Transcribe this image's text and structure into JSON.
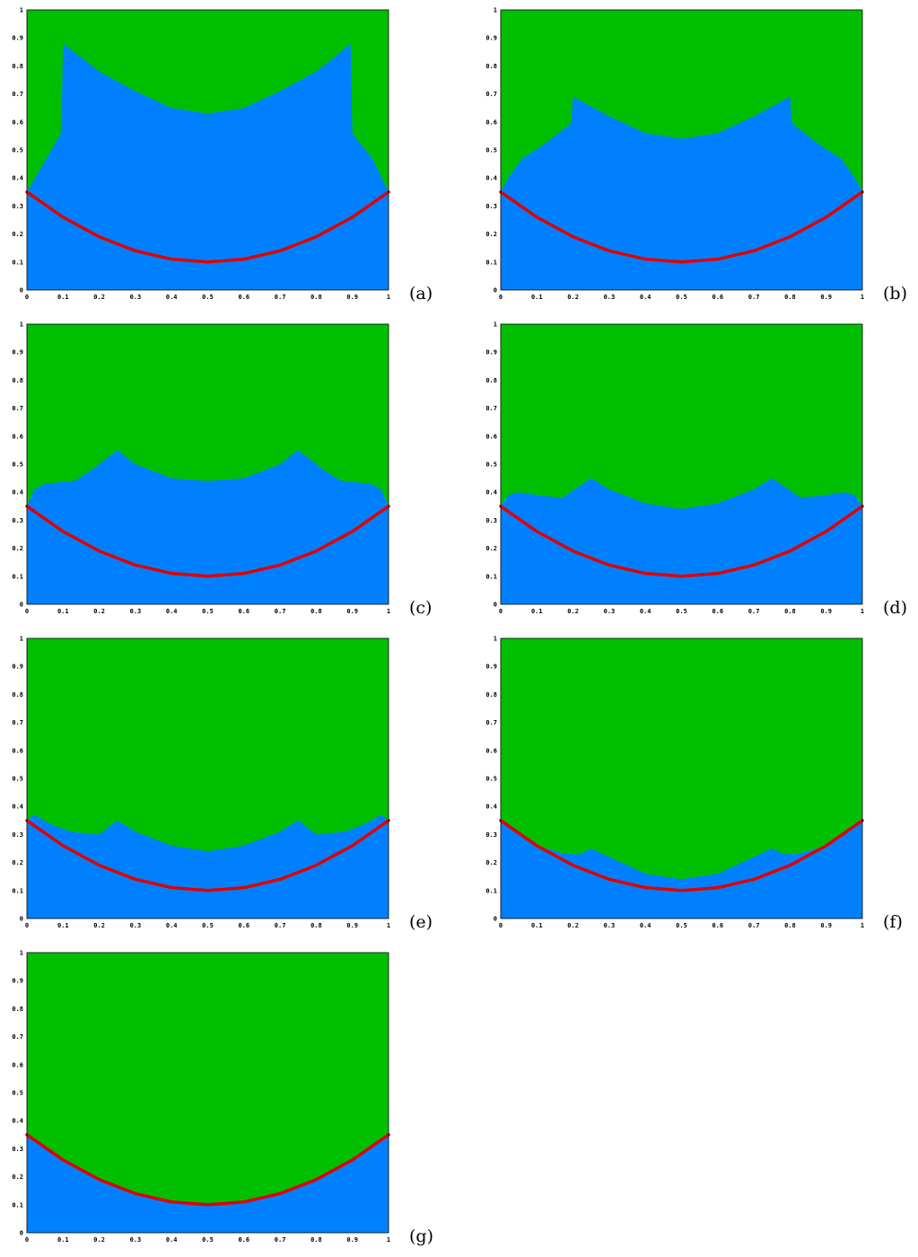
{
  "colors": {
    "upper_region": "#00bf00",
    "lower_region": "#0080ff",
    "reference_curve": "#e00000"
  },
  "axis_ticks": {
    "x": [
      "0",
      "0.1",
      "0.2",
      "0.3",
      "0.4",
      "0.5",
      "0.6",
      "0.7",
      "0.8",
      "0.9",
      "1"
    ],
    "y": [
      "0",
      "0.1",
      "0.2",
      "0.3",
      "0.4",
      "0.5",
      "0.6",
      "0.7",
      "0.8",
      "0.9",
      "1"
    ]
  },
  "reference_curve": {
    "x": [
      0,
      0.1,
      0.2,
      0.3,
      0.4,
      0.5,
      0.6,
      0.7,
      0.8,
      0.9,
      1
    ],
    "y": [
      0.35,
      0.26,
      0.19,
      0.14,
      0.11,
      0.1,
      0.11,
      0.14,
      0.19,
      0.26,
      0.35
    ]
  },
  "panels": [
    {
      "label": "(a)",
      "interface": {
        "x": [
          0,
          0.09,
          0.095,
          0.1,
          0.15,
          0.2,
          0.3,
          0.4,
          0.5,
          0.6,
          0.7,
          0.8,
          0.85,
          0.895,
          0.9,
          0.905,
          0.955,
          1
        ],
        "y": [
          0.35,
          0.55,
          0.56,
          0.88,
          0.83,
          0.78,
          0.71,
          0.65,
          0.63,
          0.65,
          0.71,
          0.78,
          0.83,
          0.88,
          0.56,
          0.55,
          0.47,
          0.35
        ]
      }
    },
    {
      "label": "(b)",
      "interface": {
        "x": [
          0,
          0.02,
          0.06,
          0.12,
          0.19,
          0.195,
          0.2,
          0.3,
          0.4,
          0.5,
          0.6,
          0.7,
          0.8,
          0.805,
          0.81,
          0.88,
          0.94,
          0.98,
          1
        ],
        "y": [
          0.35,
          0.4,
          0.47,
          0.52,
          0.59,
          0.6,
          0.69,
          0.62,
          0.56,
          0.54,
          0.56,
          0.62,
          0.69,
          0.6,
          0.59,
          0.52,
          0.47,
          0.4,
          0.35
        ]
      }
    },
    {
      "label": "(c)",
      "interface": {
        "x": [
          0,
          0.02,
          0.05,
          0.13,
          0.18,
          0.25,
          0.3,
          0.4,
          0.5,
          0.6,
          0.7,
          0.75,
          0.82,
          0.87,
          0.95,
          0.98,
          1
        ],
        "y": [
          0.35,
          0.41,
          0.43,
          0.44,
          0.48,
          0.55,
          0.5,
          0.45,
          0.44,
          0.45,
          0.5,
          0.55,
          0.48,
          0.44,
          0.43,
          0.41,
          0.35
        ]
      }
    },
    {
      "label": "(d)",
      "interface": {
        "x": [
          0,
          0.02,
          0.05,
          0.1,
          0.17,
          0.25,
          0.3,
          0.4,
          0.5,
          0.6,
          0.7,
          0.75,
          0.83,
          0.9,
          0.95,
          0.98,
          1
        ],
        "y": [
          0.35,
          0.39,
          0.4,
          0.39,
          0.38,
          0.45,
          0.41,
          0.36,
          0.34,
          0.36,
          0.41,
          0.45,
          0.38,
          0.39,
          0.4,
          0.39,
          0.35
        ]
      }
    },
    {
      "label": "(e)",
      "interface": {
        "x": [
          0,
          0.02,
          0.06,
          0.12,
          0.2,
          0.25,
          0.3,
          0.4,
          0.5,
          0.6,
          0.7,
          0.75,
          0.8,
          0.88,
          0.94,
          0.98,
          1
        ],
        "y": [
          0.35,
          0.37,
          0.34,
          0.31,
          0.3,
          0.35,
          0.31,
          0.26,
          0.24,
          0.26,
          0.31,
          0.35,
          0.3,
          0.31,
          0.34,
          0.37,
          0.35
        ]
      }
    },
    {
      "label": "(f)",
      "interface": {
        "x": [
          0,
          0.1,
          0.18,
          0.22,
          0.25,
          0.3,
          0.4,
          0.5,
          0.6,
          0.7,
          0.75,
          0.78,
          0.82,
          0.9,
          1
        ],
        "y": [
          0.35,
          0.26,
          0.23,
          0.23,
          0.25,
          0.22,
          0.16,
          0.14,
          0.16,
          0.22,
          0.25,
          0.23,
          0.23,
          0.26,
          0.35
        ]
      }
    },
    {
      "label": "(g)",
      "interface": {
        "x": [
          0,
          0.1,
          0.2,
          0.3,
          0.4,
          0.5,
          0.6,
          0.7,
          0.8,
          0.9,
          1
        ],
        "y": [
          0.35,
          0.26,
          0.19,
          0.14,
          0.11,
          0.1,
          0.11,
          0.14,
          0.19,
          0.26,
          0.35
        ]
      }
    }
  ]
}
